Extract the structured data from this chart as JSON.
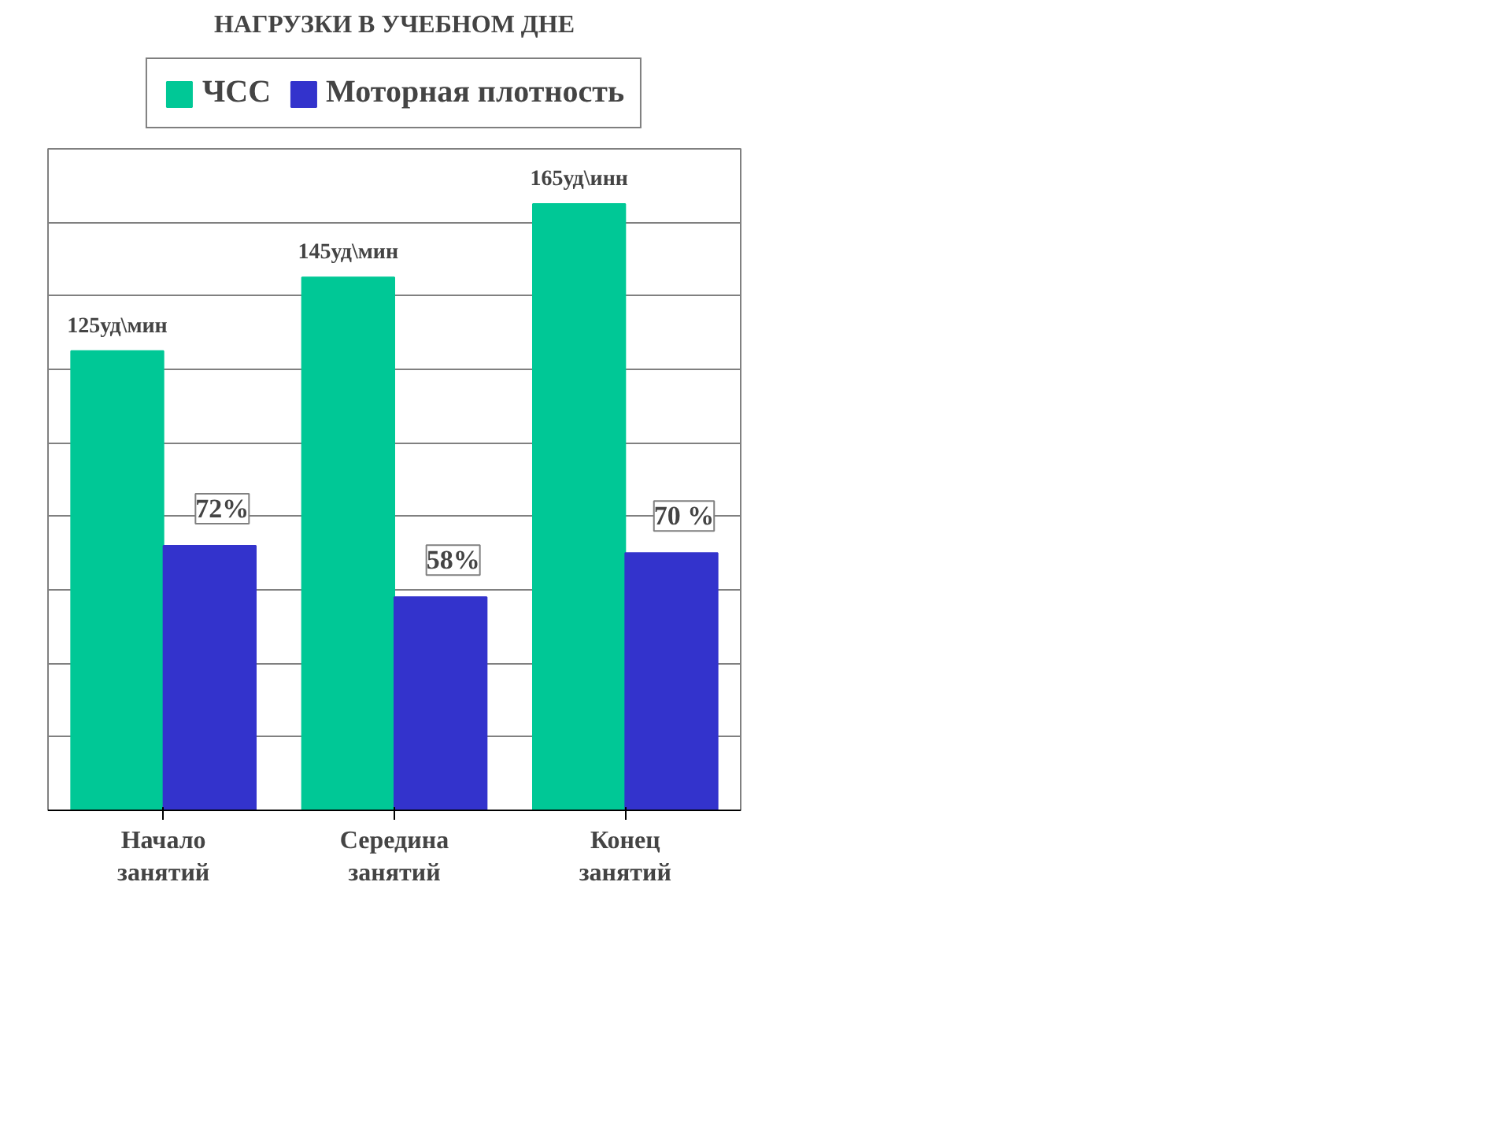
{
  "chart_data": {
    "type": "bar",
    "title": "НАГРУЗКИ В УЧЕБНОМ ДНЕ",
    "categories": [
      "Начало\nзанятий",
      "Середина\nзанятий",
      "Конец\nзанятий"
    ],
    "series": [
      {
        "name": "ЧСС",
        "color": "#00c896",
        "values": [
          125,
          145,
          165
        ],
        "value_labels": [
          "125уд\\мин",
          "145уд\\мин",
          "165уд\\инн"
        ]
      },
      {
        "name": "Моторная плотность",
        "color": "#3333cc",
        "values": [
          72,
          58,
          70
        ],
        "value_labels": [
          "72%",
          "58%",
          "70 %"
        ]
      }
    ],
    "ylim": [
      0,
      180
    ],
    "yticks": [
      {
        "value": 0,
        "label": null
      },
      {
        "value": 20,
        "label": null
      },
      {
        "value": 40,
        "label": null
      },
      {
        "value": 60,
        "label": null
      },
      {
        "value": 80,
        "label": null
      },
      {
        "value": 100,
        "label": null
      },
      {
        "value": 120,
        "label": null
      },
      {
        "value": 140,
        "label": null
      },
      {
        "value": 160,
        "label": null
      },
      {
        "value": 180,
        "label": null
      }
    ],
    "tick_labels": "x",
    "grid": "y",
    "legend": "top"
  }
}
